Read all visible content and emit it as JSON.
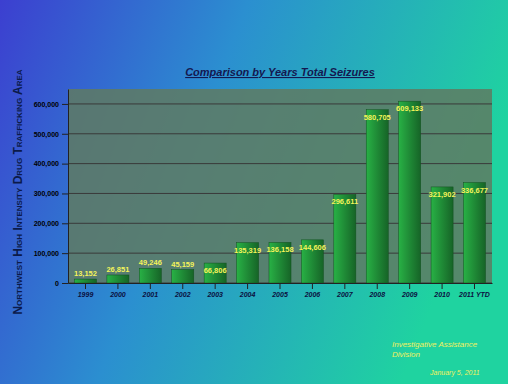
{
  "page": {
    "side_title": "Northwest High Intensity Drug Trafficking Area"
  },
  "chart_data": {
    "type": "bar",
    "title": "Comparison by Years Total Seizures",
    "categories": [
      "1999",
      "2000",
      "2001",
      "2002",
      "2003",
      "2004",
      "2005",
      "2006",
      "2007",
      "2008",
      "2009",
      "2010",
      "2011 YTD"
    ],
    "values": [
      13152,
      26851,
      49246,
      45159,
      66806,
      135319,
      136158,
      144606,
      296611,
      580705,
      609133,
      321902,
      336677
    ],
    "value_labels": [
      "13,152",
      "26,851",
      "49,246",
      "45,159",
      "66,806",
      "135,319",
      "136,158",
      "144,606",
      "296,611",
      "580,705",
      "609,133",
      "321,902",
      "336,677"
    ],
    "color": "#1f8a36",
    "ylim": [
      0,
      650000
    ],
    "yticks": [
      0,
      {
        "value": 100000,
        "label": "100,000"
      },
      {
        "value": 200000,
        "label": "200,000"
      },
      {
        "value": 300000,
        "label": "300,000"
      },
      {
        "value": 400000,
        "label": "400,000"
      },
      {
        "value": 500000,
        "label": "500,000"
      },
      {
        "value": 600000,
        "label": "600,000"
      }
    ],
    "grid": true,
    "data_labels": true,
    "annotations": [
      "Investigative Assistance Division",
      "January 5, 2011"
    ]
  }
}
